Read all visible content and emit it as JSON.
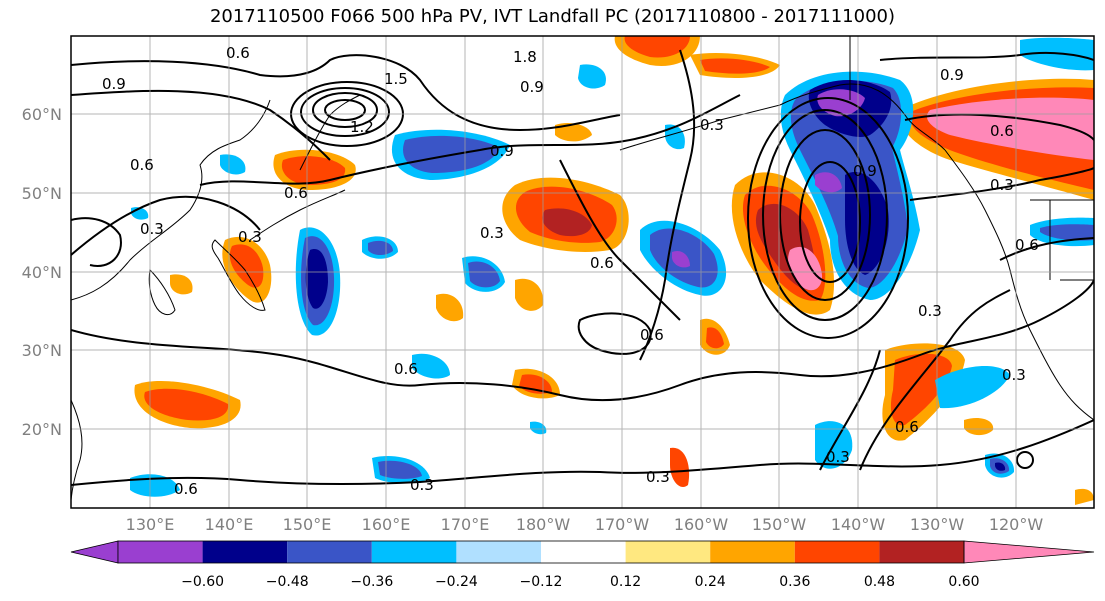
{
  "title": "2017110500 F066 500 hPa PV, IVT Landfall PC (2017110800 - 2017111000)",
  "map": {
    "lon_labels": [
      "130°E",
      "140°E",
      "150°E",
      "160°E",
      "170°E",
      "180°W",
      "170°W",
      "160°W",
      "150°W",
      "140°W",
      "130°W",
      "120°W"
    ],
    "lat_labels": [
      "60°N",
      "50°N",
      "40°N",
      "30°N",
      "20°N"
    ]
  },
  "colorbar": {
    "colors": [
      "#9a3fd0",
      "#00008b",
      "#3a55c7",
      "#00bfff",
      "#b0e0ff",
      "#ffffff",
      "#ffe880",
      "#ffa500",
      "#ff4500",
      "#b22222",
      "#ff88b8"
    ],
    "tick_labels": [
      "−0.60",
      "−0.48",
      "−0.36",
      "−0.24",
      "−0.12",
      "0.12",
      "0.24",
      "0.36",
      "0.48",
      "0.60"
    ]
  },
  "contour_labels": [
    "0.9",
    "0.6",
    "1.5",
    "1.8",
    "0.9",
    "0.6",
    "0.9",
    "1.2",
    "0.6",
    "0.3",
    "0.3",
    "0.6",
    "0.3",
    "0.6",
    "0.6",
    "0.6",
    "0.3",
    "0.6",
    "0.3",
    "0.6",
    "0.3",
    "0.3",
    "0.3",
    "0.3",
    "0.9",
    "0.6",
    "0.3",
    "0.9"
  ]
}
